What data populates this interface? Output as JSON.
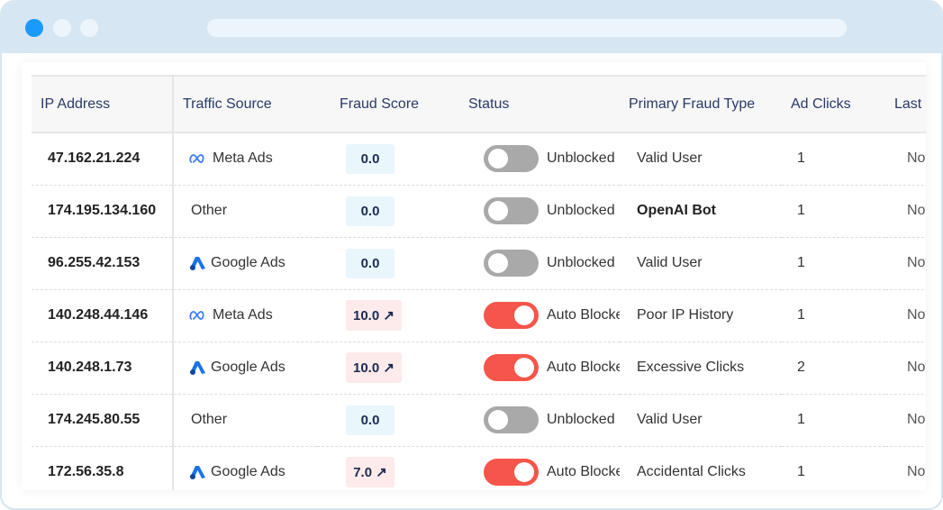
{
  "headers": [
    "IP Address",
    "Traffic Source",
    "Fraud Score",
    "Status",
    "Primary Fraud Type",
    "Ad Clicks",
    "Last"
  ],
  "colors": {
    "blocked": "#f5554a",
    "unblocked": "#a9a9a9",
    "score_low_bg": "#e9f6fc",
    "score_high_bg": "#fdeaea"
  },
  "rows": [
    {
      "ip": "47.162.21.224",
      "source": "Meta Ads",
      "source_icon": "meta-icon",
      "score": "0.0",
      "high": false,
      "blocked": false,
      "status": "Unblocked",
      "type": "Valid User",
      "clicks": "1",
      "last": "Nov"
    },
    {
      "ip": "174.195.134.160",
      "source": "Other",
      "source_icon": "",
      "score": "0.0",
      "high": false,
      "blocked": false,
      "status": "Unblocked",
      "type": "OpenAI Bot",
      "clicks": "1",
      "last": "Nov"
    },
    {
      "ip": "96.255.42.153",
      "source": "Google Ads",
      "source_icon": "google-ads-icon",
      "score": "0.0",
      "high": false,
      "blocked": false,
      "status": "Unblocked",
      "type": "Valid User",
      "clicks": "1",
      "last": "Nov"
    },
    {
      "ip": "140.248.44.146",
      "source": "Meta Ads",
      "source_icon": "meta-icon",
      "score": "10.0",
      "high": true,
      "blocked": true,
      "status": "Auto Blocked",
      "type": "Poor IP History",
      "clicks": "1",
      "last": "Nov"
    },
    {
      "ip": "140.248.1.73",
      "source": "Google Ads",
      "source_icon": "google-ads-icon",
      "score": "10.0",
      "high": true,
      "blocked": true,
      "status": "Auto Blocked",
      "type": "Excessive Clicks",
      "clicks": "2",
      "last": "Nov"
    },
    {
      "ip": "174.245.80.55",
      "source": "Other",
      "source_icon": "",
      "score": "0.0",
      "high": false,
      "blocked": false,
      "status": "Unblocked",
      "type": "Valid User",
      "clicks": "1",
      "last": "Nov"
    },
    {
      "ip": "172.56.35.8",
      "source": "Google Ads",
      "source_icon": "google-ads-icon",
      "score": "7.0",
      "high": true,
      "blocked": true,
      "status": "Auto Blocked",
      "type": "Accidental Clicks",
      "clicks": "1",
      "last": "Nov"
    }
  ]
}
